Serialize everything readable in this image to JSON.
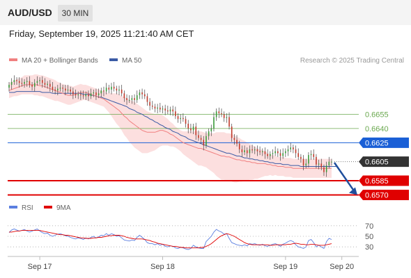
{
  "header": {
    "pair": "AUD/USD",
    "timeframe": "30 MIN"
  },
  "datetime": "Friday, September 19, 2025 11:21:40 AM CET",
  "colors": {
    "ma20": "#f08080",
    "bollinger_fill": "#fcd9d9",
    "ma50": "#3b5ba5",
    "candle_up": "#3a9a3a",
    "candle_down": "#c0392b",
    "pivot": "#1a5fd6",
    "support": "#e00000",
    "resistance": "#6aa84f",
    "last": "#333333",
    "rsi": "#5b7fe0",
    "rsi_ma": "#e00000"
  },
  "chart_data": [
    {
      "type": "candlestick",
      "title": "AUD/USD",
      "source": "Research © 2025 Trading Central",
      "legend": [
        {
          "name": "MA 20 + Bollinger Bands",
          "color_key": "ma20"
        },
        {
          "name": "MA 50",
          "color_key": "ma50"
        }
      ],
      "ylim": [
        0.6563,
        0.6708
      ],
      "x_ticks": [
        {
          "label": "Sep 17",
          "index": 12
        },
        {
          "label": "Sep 18",
          "index": 60
        },
        {
          "label": "Sep 19",
          "index": 108
        },
        {
          "label": "Sep 20",
          "index": 130
        }
      ],
      "levels": [
        {
          "label": "0.6655",
          "value": 0.6655,
          "kind": "resistance"
        },
        {
          "label": "0.6640",
          "value": 0.664,
          "kind": "resistance"
        },
        {
          "label": "0.6625",
          "value": 0.6625,
          "kind": "pivot"
        },
        {
          "label": "0.6605",
          "value": 0.6605,
          "kind": "last"
        },
        {
          "label": "0.6585",
          "value": 0.6585,
          "kind": "support"
        },
        {
          "label": "0.6570",
          "value": 0.657,
          "kind": "support"
        }
      ],
      "forecast": {
        "from": [
          0.6604,
          0.657
        ]
      },
      "close": [
        0.6686,
        0.6689,
        0.6691,
        0.669,
        0.6688,
        0.6687,
        0.6689,
        0.669,
        0.6686,
        0.6684,
        0.6688,
        0.669,
        0.6691,
        0.6688,
        0.6686,
        0.6687,
        0.6684,
        0.6681,
        0.668,
        0.6682,
        0.6683,
        0.6682,
        0.668,
        0.6681,
        0.6679,
        0.6676,
        0.6675,
        0.6676,
        0.6675,
        0.6674,
        0.6676,
        0.6674,
        0.6677,
        0.6678,
        0.6675,
        0.6677,
        0.668,
        0.6679,
        0.6683,
        0.6681,
        0.6684,
        0.6682,
        0.668,
        0.6681,
        0.6677,
        0.6672,
        0.667,
        0.667,
        0.6672,
        0.667,
        0.6675,
        0.6678,
        0.6676,
        0.6674,
        0.6668,
        0.6664,
        0.6663,
        0.6661,
        0.6662,
        0.666,
        0.6661,
        0.6659,
        0.6658,
        0.666,
        0.6658,
        0.6653,
        0.665,
        0.6651,
        0.665,
        0.6645,
        0.664,
        0.6638,
        0.6642,
        0.6633,
        0.663,
        0.6628,
        0.6622,
        0.6632,
        0.6637,
        0.664,
        0.6652,
        0.6658,
        0.6656,
        0.6655,
        0.6651,
        0.6652,
        0.6642,
        0.663,
        0.6628,
        0.6624,
        0.6618,
        0.6615,
        0.6617,
        0.6614,
        0.6618,
        0.6617,
        0.6618,
        0.6616,
        0.6615,
        0.6616,
        0.6613,
        0.6611,
        0.6613,
        0.6614,
        0.6616,
        0.6614,
        0.6611,
        0.6614,
        0.6616,
        0.6618,
        0.662,
        0.6618,
        0.6614,
        0.661,
        0.6608,
        0.6601,
        0.6603,
        0.6612,
        0.6613,
        0.661,
        0.6602,
        0.6603,
        0.6599,
        0.6594,
        0.6601,
        0.6605,
        0.6605
      ],
      "ma20": [
        0.668,
        0.6681,
        0.6682,
        0.6683,
        0.6684,
        0.6685,
        0.6686,
        0.6686,
        0.6686,
        0.6686,
        0.6686,
        0.6686,
        0.6685,
        0.6685,
        0.6684,
        0.6683,
        0.6682,
        0.6681,
        0.668,
        0.6679,
        0.6678,
        0.6677,
        0.6676,
        0.6675,
        0.6675,
        0.6675,
        0.6676,
        0.6677,
        0.6678,
        0.6678,
        0.6678,
        0.6677,
        0.6676,
        0.6675,
        0.6674,
        0.6673,
        0.6672,
        0.6671,
        0.6669,
        0.6667,
        0.6665,
        0.6663,
        0.6661,
        0.6659,
        0.6656,
        0.6653,
        0.6651,
        0.6648,
        0.6646,
        0.6644,
        0.6642,
        0.664,
        0.6638,
        0.6637,
        0.6636,
        0.6636,
        0.6636,
        0.6636,
        0.6637,
        0.6638,
        0.6638,
        0.6637,
        0.6636,
        0.6634,
        0.6633,
        0.6631,
        0.6629,
        0.6627,
        0.6625,
        0.6624,
        0.6623,
        0.6622,
        0.6621,
        0.662,
        0.6619,
        0.6619,
        0.6618,
        0.6617,
        0.6616,
        0.6615,
        0.6614,
        0.6613,
        0.6612,
        0.6611,
        0.6611,
        0.661,
        0.661,
        0.6609,
        0.6608,
        0.6607,
        0.6607,
        0.6606,
        0.6606,
        0.6605,
        0.6605,
        0.6604,
        0.6604,
        0.6603,
        0.6603,
        0.6603,
        0.6603,
        0.6602,
        0.6602,
        0.6601,
        0.6601,
        0.66,
        0.66,
        0.66,
        0.6599,
        0.6599,
        0.6599,
        0.6598,
        0.6598,
        0.6598,
        0.6598,
        0.6598,
        0.6598,
        0.6598,
        0.6598,
        0.6598,
        0.6598,
        0.6598,
        0.6598,
        0.6598,
        0.6598,
        0.6598,
        0.6598
      ],
      "ma50": [
        0.6678,
        0.6678,
        0.6678,
        0.6679,
        0.6679,
        0.6679,
        0.6679,
        0.6679,
        0.6679,
        0.6679,
        0.6679,
        0.6679,
        0.6679,
        0.6678,
        0.6678,
        0.6678,
        0.6678,
        0.6677,
        0.6677,
        0.6677,
        0.6677,
        0.6677,
        0.6677,
        0.6677,
        0.6677,
        0.6677,
        0.6677,
        0.6677,
        0.6677,
        0.6676,
        0.6676,
        0.6676,
        0.6675,
        0.6675,
        0.6674,
        0.6673,
        0.6673,
        0.6672,
        0.6671,
        0.667,
        0.6669,
        0.6668,
        0.6667,
        0.6666,
        0.6665,
        0.6664,
        0.6663,
        0.6661,
        0.666,
        0.6659,
        0.6657,
        0.6656,
        0.6655,
        0.6653,
        0.6652,
        0.665,
        0.6649,
        0.6647,
        0.6646,
        0.6644,
        0.6643,
        0.6641,
        0.664,
        0.6639,
        0.6637,
        0.6636,
        0.6635,
        0.6633,
        0.6632,
        0.6631,
        0.6629,
        0.6628,
        0.6627,
        0.6626,
        0.6625,
        0.6624,
        0.6623,
        0.6622,
        0.6621,
        0.662,
        0.6619,
        0.6618,
        0.6617,
        0.6616,
        0.6615,
        0.6614,
        0.6614,
        0.6613,
        0.6612,
        0.6611,
        0.6611,
        0.661,
        0.6609,
        0.6609,
        0.6608,
        0.6608,
        0.6607,
        0.6607,
        0.6606,
        0.6606,
        0.6605,
        0.6605,
        0.6604,
        0.6604,
        0.6603,
        0.6603,
        0.6603,
        0.6602,
        0.6602,
        0.6602,
        0.6601,
        0.6601,
        0.6601,
        0.6601,
        0.66,
        0.66,
        0.66,
        0.66,
        0.66,
        0.66,
        0.66,
        0.66,
        0.66,
        0.66,
        0.66,
        0.66,
        0.66,
        0.66,
        0.66
      ],
      "bb_width": [
        0.0008,
        0.0008,
        0.0008,
        0.0009,
        0.0009,
        0.0009,
        0.001,
        0.001,
        0.001,
        0.001,
        0.0011,
        0.0011,
        0.0011,
        0.0011,
        0.0011,
        0.0011,
        0.0011,
        0.0011,
        0.0011,
        0.001,
        0.001,
        0.001,
        0.001,
        0.001,
        0.001,
        0.0009,
        0.0009,
        0.0009,
        0.0009,
        0.0008,
        0.0008,
        0.0008,
        0.0008,
        0.0008,
        0.0008,
        0.0008,
        0.0008,
        0.0008,
        0.0009,
        0.001,
        0.0012,
        0.0014,
        0.0016,
        0.0017,
        0.0018,
        0.002,
        0.0021,
        0.0022,
        0.0023,
        0.0024,
        0.0024,
        0.0024,
        0.0024,
        0.0023,
        0.0022,
        0.0021,
        0.002,
        0.0019,
        0.0018,
        0.0017,
        0.0016,
        0.0015,
        0.0014,
        0.0013,
        0.0012,
        0.0011,
        0.0011,
        0.0011,
        0.0012,
        0.0013,
        0.0014,
        0.0015,
        0.0016,
        0.0017,
        0.0018,
        0.0018,
        0.0018,
        0.0018,
        0.0019,
        0.002,
        0.0021,
        0.0023,
        0.0024,
        0.0025,
        0.0025,
        0.0025,
        0.0025,
        0.0025,
        0.0025,
        0.0024,
        0.0023,
        0.0022,
        0.0021,
        0.002,
        0.0019,
        0.0018,
        0.0017,
        0.0016,
        0.0015,
        0.0014,
        0.0013,
        0.0012,
        0.0011,
        0.0011,
        0.001,
        0.001,
        0.001,
        0.001,
        0.001,
        0.001,
        0.001,
        0.001,
        0.001,
        0.001,
        0.001,
        0.001,
        0.001,
        0.001,
        0.001,
        0.001,
        0.001,
        0.001,
        0.001,
        0.001,
        0.001,
        0.001,
        0.001
      ]
    },
    {
      "type": "line",
      "title": "RSI",
      "legend": [
        {
          "name": "RSI",
          "color_key": "rsi"
        },
        {
          "name": "9MA",
          "color_key": "rsi_ma"
        }
      ],
      "ylim": [
        25,
        75
      ],
      "y_ticks": [
        70,
        50,
        30
      ],
      "series": [
        {
          "name": "RSI",
          "values": [
            57,
            62,
            64,
            62,
            60,
            61,
            63,
            60,
            58,
            60,
            62,
            64,
            60,
            57,
            55,
            56,
            52,
            50,
            52,
            54,
            55,
            53,
            51,
            50,
            48,
            46,
            45,
            47,
            46,
            44,
            47,
            45,
            48,
            50,
            47,
            49,
            52,
            51,
            55,
            52,
            55,
            53,
            50,
            51,
            47,
            43,
            42,
            41,
            43,
            42,
            48,
            52,
            48,
            44,
            38,
            36,
            36,
            34,
            36,
            33,
            35,
            31,
            30,
            32,
            31,
            28,
            27,
            29,
            28,
            26,
            25,
            27,
            33,
            30,
            28,
            27,
            27,
            40,
            45,
            50,
            58,
            63,
            60,
            58,
            54,
            55,
            46,
            38,
            36,
            34,
            33,
            32,
            34,
            32,
            36,
            35,
            36,
            34,
            33,
            35,
            32,
            31,
            33,
            35,
            36,
            34,
            31,
            35,
            37,
            40,
            42,
            40,
            34,
            30,
            29,
            27,
            30,
            42,
            44,
            38,
            30,
            33,
            30,
            27,
            40,
            46,
            44
          ]
        },
        {
          "name": "9MA",
          "values": [
            58,
            58,
            59,
            60,
            60,
            61,
            61,
            61,
            61,
            61,
            61,
            61,
            61,
            60,
            59,
            58,
            57,
            56,
            55,
            54,
            53,
            53,
            52,
            52,
            51,
            50,
            49,
            48,
            47,
            47,
            46,
            46,
            46,
            47,
            47,
            48,
            48,
            49,
            50,
            51,
            51,
            52,
            52,
            52,
            51,
            50,
            48,
            47,
            46,
            45,
            45,
            45,
            45,
            44,
            43,
            42,
            40,
            39,
            37,
            36,
            35,
            34,
            33,
            32,
            31,
            31,
            30,
            29,
            29,
            28,
            28,
            28,
            28,
            28,
            28,
            29,
            29,
            31,
            33,
            36,
            40,
            44,
            48,
            51,
            53,
            55,
            54,
            52,
            50,
            47,
            44,
            41,
            38,
            36,
            35,
            34,
            34,
            34,
            34,
            34,
            34,
            34,
            33,
            33,
            34,
            34,
            34,
            34,
            34,
            35,
            35,
            36,
            37,
            36,
            35,
            35,
            34,
            34,
            35,
            35,
            34,
            33,
            33,
            33,
            34,
            35,
            36
          ]
        }
      ]
    }
  ]
}
